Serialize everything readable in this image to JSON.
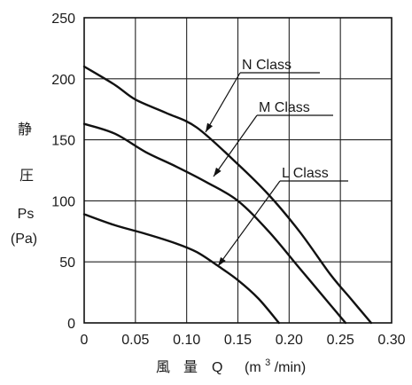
{
  "chart_data": {
    "type": "line",
    "title": "",
    "xlabel": "風 量 Q (m³/min)",
    "xlabel_parts": {
      "cjk1": "風",
      "cjk2": "量",
      "sym": "Q",
      "unit_pre": "(m",
      "unit_sup": "3",
      "unit_post": "/min)"
    },
    "ylabel_lines": [
      "静",
      "圧",
      "Ps",
      "(Pa)"
    ],
    "xlim": [
      0,
      0.3
    ],
    "ylim": [
      0,
      250
    ],
    "x_ticks": [
      0,
      0.05,
      0.1,
      0.15,
      0.2,
      0.25,
      0.3
    ],
    "x_tick_labels": [
      "0",
      "0.05",
      "0.10",
      "0.15",
      "0.20",
      "0.25",
      "0.30"
    ],
    "y_ticks": [
      0,
      50,
      100,
      150,
      200,
      250
    ],
    "y_tick_labels": [
      "0",
      "50",
      "100",
      "150",
      "200",
      "250"
    ],
    "grid": true,
    "series": [
      {
        "name": "N Class",
        "x": [
          0,
          0.03,
          0.05,
          0.08,
          0.11,
          0.15,
          0.18,
          0.21,
          0.24,
          0.26,
          0.28
        ],
        "y": [
          210,
          195,
          183,
          172,
          160,
          130,
          105,
          75,
          40,
          20,
          0
        ]
      },
      {
        "name": "M Class",
        "x": [
          0,
          0.03,
          0.06,
          0.09,
          0.12,
          0.15,
          0.18,
          0.21,
          0.24,
          0.255
        ],
        "y": [
          163,
          155,
          140,
          128,
          115,
          100,
          75,
          45,
          15,
          0
        ]
      },
      {
        "name": "L Class",
        "x": [
          0,
          0.03,
          0.06,
          0.09,
          0.11,
          0.13,
          0.15,
          0.17,
          0.19
        ],
        "y": [
          89,
          80,
          73,
          65,
          58,
          47,
          35,
          20,
          0
        ]
      }
    ]
  }
}
